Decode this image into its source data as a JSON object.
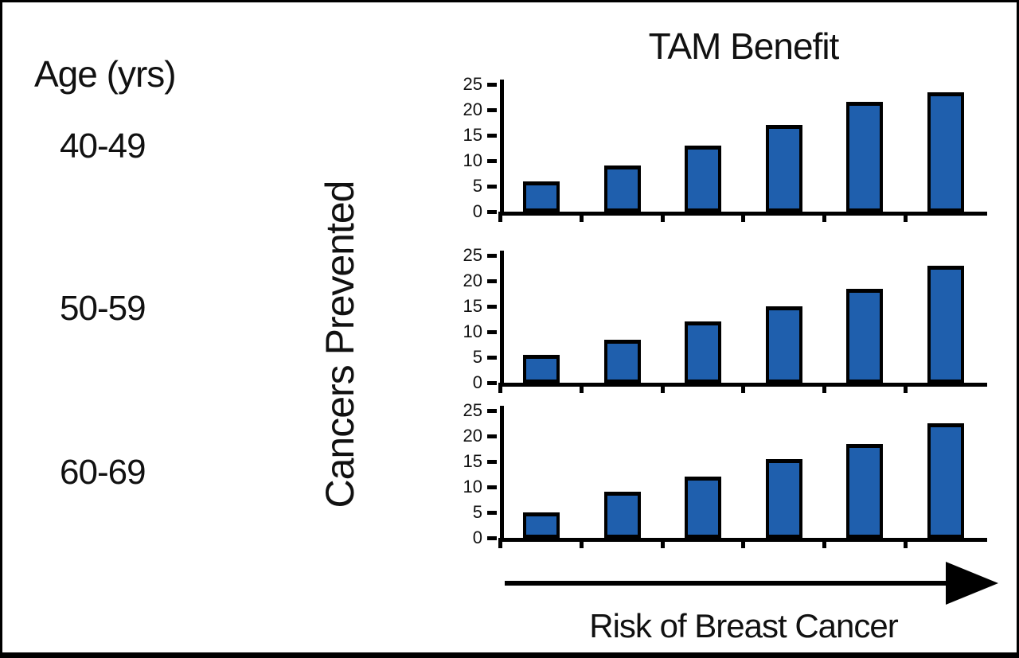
{
  "figure": {
    "title": "TAM Benefit",
    "y_axis_label": "Cancers Prevented",
    "x_axis_label": "Risk of Breast Cancer",
    "age_column": {
      "header": "Age (yrs)",
      "rows": [
        "40-49",
        "50-59",
        "60-69"
      ]
    },
    "colors": {
      "bar_fill": "#1F5FAD",
      "bar_border": "#000000",
      "axis": "#000000",
      "text": "#111111",
      "background": "#FFFFFF"
    }
  },
  "chart_data": [
    {
      "type": "bar",
      "group": "40-49",
      "title": "TAM Benefit",
      "ylabel": "Cancers Prevented",
      "xlabel": "Risk of Breast Cancer",
      "values": [
        6,
        9,
        13,
        17,
        21.5,
        23.5
      ],
      "ylim": [
        0,
        25
      ],
      "yticks": [
        0,
        5,
        10,
        15,
        20,
        25
      ],
      "x_tick_count": 6,
      "x_tick_labels": [],
      "grid": false,
      "legend": false
    },
    {
      "type": "bar",
      "group": "50-59",
      "ylabel": "Cancers Prevented",
      "xlabel": "Risk of Breast Cancer",
      "values": [
        5.5,
        8.5,
        12,
        15,
        18.5,
        23
      ],
      "ylim": [
        0,
        25
      ],
      "yticks": [
        0,
        5,
        10,
        15,
        20,
        25
      ],
      "x_tick_count": 6,
      "x_tick_labels": [],
      "grid": false,
      "legend": false
    },
    {
      "type": "bar",
      "group": "60-69",
      "ylabel": "Cancers Prevented",
      "xlabel": "Risk of Breast Cancer",
      "values": [
        5,
        9,
        12,
        15.5,
        18.5,
        22.5
      ],
      "ylim": [
        0,
        25
      ],
      "yticks": [
        0,
        5,
        10,
        15,
        20,
        25
      ],
      "x_tick_count": 6,
      "x_tick_labels": [],
      "grid": false,
      "legend": false
    }
  ]
}
